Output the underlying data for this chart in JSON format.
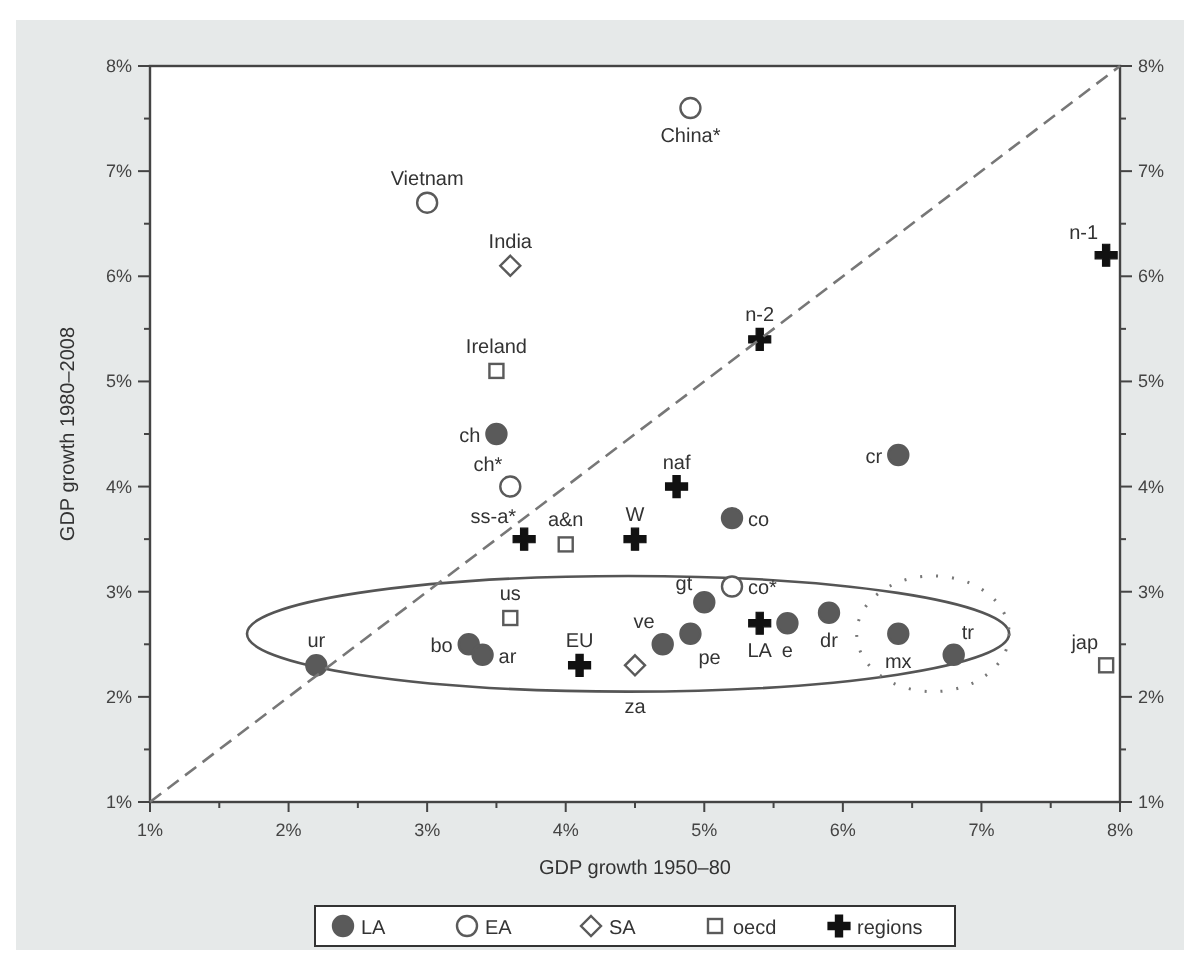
{
  "chart_data": {
    "type": "scatter",
    "xlabel": "GDP growth 1950–80",
    "ylabel": "GDP growth 1980–2008",
    "xlim": [
      1,
      8
    ],
    "ylim": [
      1,
      8
    ],
    "y2lim": [
      1,
      8
    ],
    "xticks": [
      {
        "value": 1,
        "label": "1%"
      },
      {
        "value": 1.5,
        "label": null
      },
      {
        "value": 2,
        "label": "2%"
      },
      {
        "value": 2.5,
        "label": null
      },
      {
        "value": 3,
        "label": "3%"
      },
      {
        "value": 3.5,
        "label": null
      },
      {
        "value": 4,
        "label": "4%"
      },
      {
        "value": 4.5,
        "label": null
      },
      {
        "value": 5,
        "label": "5%"
      },
      {
        "value": 5.5,
        "label": null
      },
      {
        "value": 6,
        "label": "6%"
      },
      {
        "value": 6.5,
        "label": null
      },
      {
        "value": 7,
        "label": "7%"
      },
      {
        "value": 7.5,
        "label": null
      },
      {
        "value": 8,
        "label": "8%"
      }
    ],
    "yticks": [
      {
        "value": 1,
        "label": "1%"
      },
      {
        "value": 1.5,
        "label": null
      },
      {
        "value": 2,
        "label": "2%"
      },
      {
        "value": 2.5,
        "label": null
      },
      {
        "value": 3,
        "label": "3%"
      },
      {
        "value": 3.5,
        "label": null
      },
      {
        "value": 4,
        "label": "4%"
      },
      {
        "value": 4.5,
        "label": null
      },
      {
        "value": 5,
        "label": "5%"
      },
      {
        "value": 5.5,
        "label": null
      },
      {
        "value": 6,
        "label": "6%"
      },
      {
        "value": 6.5,
        "label": null
      },
      {
        "value": 7,
        "label": "7%"
      },
      {
        "value": 7.5,
        "label": null
      },
      {
        "value": 8,
        "label": "8%"
      }
    ],
    "y2ticks": [
      {
        "value": 1,
        "label": "1%"
      },
      {
        "value": 1.5,
        "label": null
      },
      {
        "value": 2,
        "label": "2%"
      },
      {
        "value": 2.5,
        "label": null
      },
      {
        "value": 3,
        "label": "3%"
      },
      {
        "value": 3.5,
        "label": null
      },
      {
        "value": 4,
        "label": "4%"
      },
      {
        "value": 4.5,
        "label": null
      },
      {
        "value": 5,
        "label": "5%"
      },
      {
        "value": 5.5,
        "label": null
      },
      {
        "value": 6,
        "label": "6%"
      },
      {
        "value": 6.5,
        "label": null
      },
      {
        "value": 7,
        "label": "7%"
      },
      {
        "value": 7.5,
        "label": null
      },
      {
        "value": 8,
        "label": "8%"
      }
    ],
    "grid": false,
    "legend": "bottom",
    "series": [
      {
        "name": "LA",
        "color": "#5a5a5a",
        "marker": "circle",
        "x": [
          2.2,
          3.3,
          3.4,
          3.5,
          4.7,
          4.9,
          5.0,
          5.2,
          5.6,
          5.9,
          6.4,
          6.8,
          6.4
        ],
        "values": [
          2.3,
          2.5,
          2.4,
          4.5,
          2.5,
          2.6,
          2.9,
          3.7,
          2.7,
          2.8,
          2.6,
          2.4,
          4.3
        ],
        "value_labels": [
          "ur",
          "bo",
          "ar",
          "ch",
          "ve",
          "pe",
          "gt",
          "co",
          "e",
          "dr",
          "mx",
          "tr",
          "cr"
        ]
      },
      {
        "name": "EA",
        "color": "#5a5a5a",
        "marker": "circle",
        "x": [
          4.9,
          3.0,
          3.6,
          5.2
        ],
        "values": [
          7.6,
          6.7,
          4.0,
          3.05
        ],
        "value_labels": [
          "China*",
          "Vietnam",
          "ch*",
          "co*"
        ]
      },
      {
        "name": "SA",
        "color": "#5a5a5a",
        "marker": "diamond",
        "x": [
          3.6,
          4.5
        ],
        "values": [
          6.1,
          2.3
        ],
        "value_labels": [
          "India",
          "za"
        ]
      },
      {
        "name": "oecd",
        "color": "#5a5a5a",
        "marker": "square",
        "x": [
          3.5,
          3.6,
          4.0,
          7.9
        ],
        "values": [
          5.1,
          2.75,
          3.45,
          2.3
        ],
        "value_labels": [
          "Ireland",
          "us",
          "a&n",
          "jap"
        ]
      },
      {
        "name": "regions",
        "color": "#111111",
        "marker": "cross",
        "x": [
          7.9,
          5.4,
          4.8,
          4.5,
          3.7,
          4.1,
          5.4
        ],
        "values": [
          6.2,
          5.4,
          4.0,
          3.5,
          3.5,
          2.3,
          2.7
        ],
        "value_labels": [
          "n-1",
          "n-2",
          "naf",
          "W",
          "ss-a*",
          "EU",
          "LA"
        ]
      },
      {
        "type": "line",
        "color": "#777777",
        "line_style": "dashed",
        "marker": "none",
        "x": [
          1,
          8
        ],
        "values": [
          1,
          8
        ]
      }
    ]
  }
}
